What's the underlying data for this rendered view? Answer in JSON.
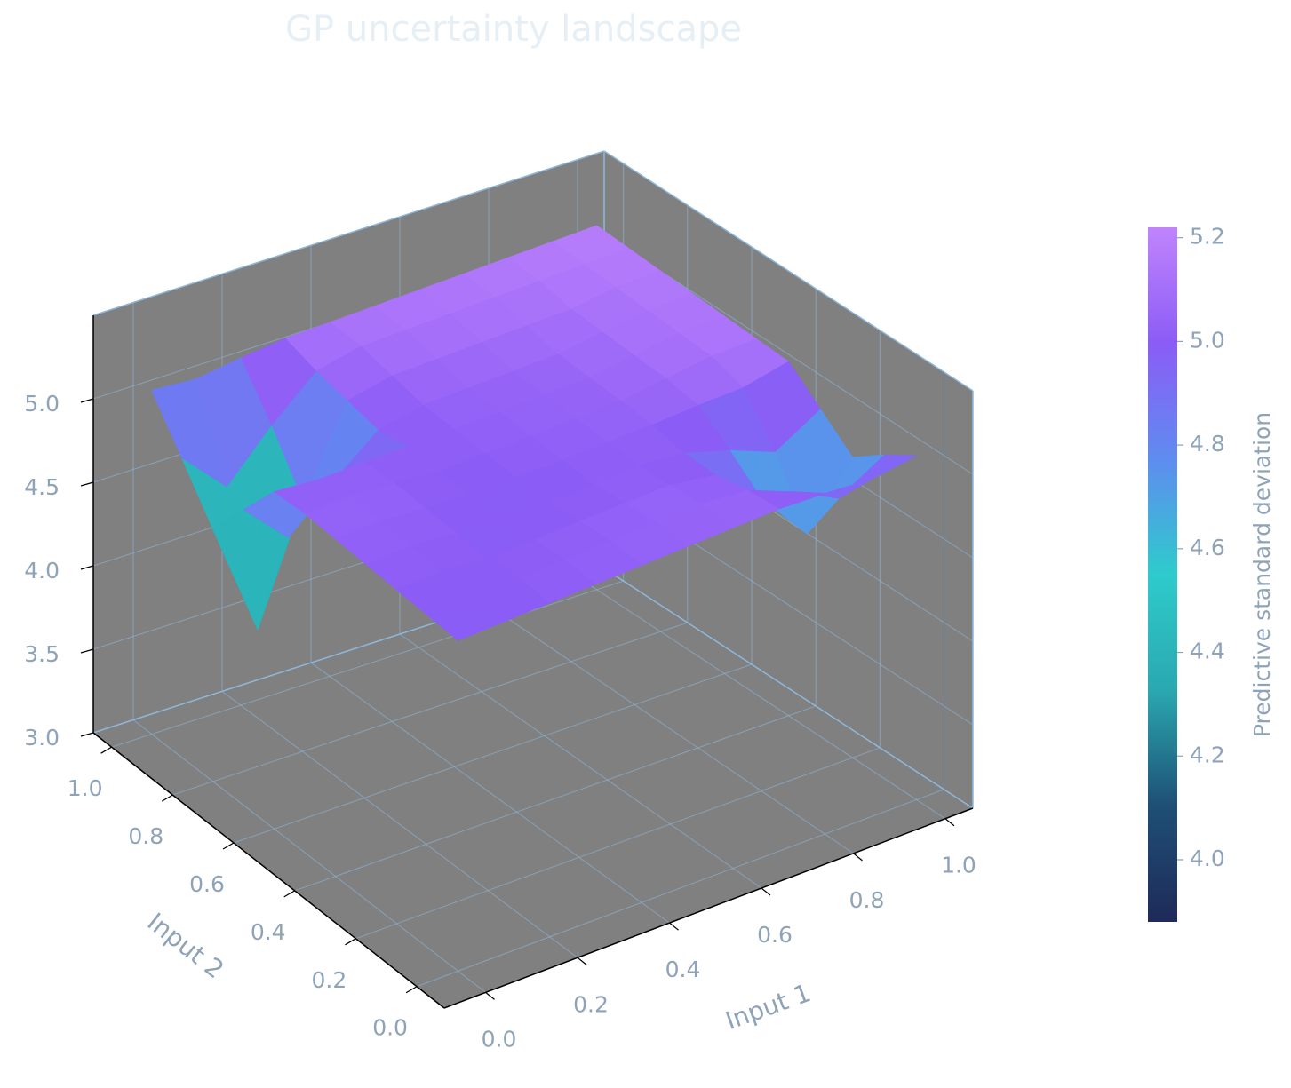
{
  "chart_data": {
    "type": "surface",
    "title": "GP uncertainty landscape",
    "xlabel": "Input 1",
    "ylabel": "Input 2",
    "colorbar_label": "Predictive standard deviation",
    "x": [
      0,
      0.1,
      0.2,
      0.3,
      0.4,
      0.5,
      0.6,
      0.7,
      0.8,
      0.9,
      1
    ],
    "y": [
      0,
      0.1,
      0.2,
      0.3,
      0.4,
      0.5,
      0.6,
      0.7,
      0.8,
      0.9,
      1
    ],
    "z": [
      [
        4.98,
        4.99,
        5.0,
        5.01,
        5.02,
        5.03,
        5.04,
        5.05,
        5.04,
        5.02,
        5.06
      ],
      [
        4.99,
        5.0,
        5.01,
        5.02,
        5.03,
        5.04,
        5.05,
        5.03,
        4.92,
        4.78,
        4.94
      ],
      [
        5.0,
        5.01,
        4.99,
        5.0,
        5.01,
        5.02,
        5.03,
        4.99,
        4.75,
        4.44,
        4.8
      ],
      [
        5.01,
        5.02,
        5.0,
        4.98,
        4.99,
        5.0,
        5.01,
        4.99,
        4.91,
        4.8,
        4.96
      ],
      [
        5.02,
        5.03,
        5.01,
        4.99,
        5.0,
        5.01,
        5.02,
        5.03,
        5.05,
        5.06,
        5.12
      ],
      [
        5.03,
        5.04,
        5.02,
        5.0,
        5.01,
        5.02,
        5.03,
        5.04,
        5.08,
        5.12,
        5.13
      ],
      [
        5.02,
        5.0,
        5.01,
        5.01,
        5.02,
        5.03,
        5.04,
        5.05,
        5.09,
        5.13,
        5.14
      ],
      [
        4.77,
        4.51,
        4.76,
        4.97,
        5.03,
        5.04,
        5.05,
        5.06,
        5.1,
        5.14,
        5.15
      ],
      [
        4.51,
        3.82,
        4.5,
        5.01,
        5.07,
        5.08,
        5.09,
        5.1,
        5.11,
        5.15,
        5.16
      ],
      [
        4.79,
        4.53,
        4.81,
        5.05,
        5.11,
        5.12,
        5.13,
        5.14,
        5.15,
        5.16,
        5.17
      ],
      [
        5.06,
        5.04,
        5.08,
        5.11,
        5.12,
        5.13,
        5.14,
        5.15,
        5.16,
        5.17,
        5.18
      ]
    ],
    "xlim": [
      -0.09,
      1.06
    ],
    "ylim": [
      -0.09,
      1.06
    ],
    "zlim": [
      3,
      5.5
    ],
    "xticks": [
      {
        "value": 0,
        "label": "0.0"
      },
      0.2,
      0.4,
      0.6,
      0.8,
      {
        "value": 1,
        "label": "1.0"
      }
    ],
    "yticks": [
      {
        "value": 0,
        "label": "0.0"
      },
      0.2,
      0.4,
      0.6,
      0.8,
      {
        "value": 1,
        "label": "1.0"
      }
    ],
    "zticks": [
      {
        "value": 3,
        "label": "3.0"
      },
      3.5,
      {
        "value": 4,
        "label": "4.0"
      },
      4.5,
      {
        "value": 5,
        "label": "5.0"
      }
    ],
    "clim": [
      3.88,
      5.22
    ],
    "cticks": [
      {
        "value": 4,
        "label": "4.0"
      },
      4.2,
      4.4,
      4.6,
      4.8,
      {
        "value": 5,
        "label": "5.0"
      },
      5.2
    ],
    "colormap": [
      "#1e2a5a",
      "#1e4f75",
      "#2aa8b0",
      "#2ecbcc",
      "#5f8cf0",
      "#8b5cf6",
      "#c084fc"
    ],
    "pane_color": "#808080",
    "grid": true
  }
}
